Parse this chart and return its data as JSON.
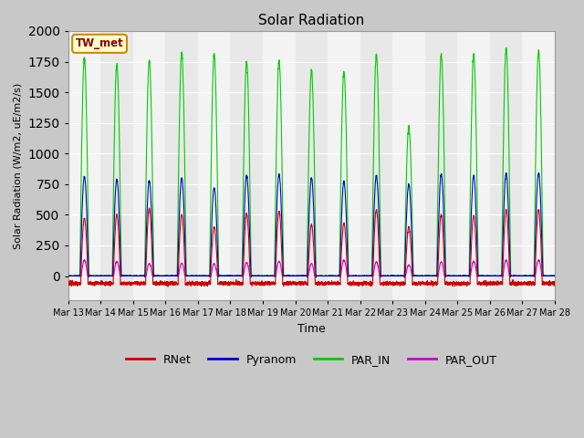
{
  "title": "Solar Radiation",
  "ylabel": "Solar Radiation (W/m2, uE/m2/s)",
  "xlabel": "Time",
  "ylim": [
    -200,
    2000
  ],
  "colors": {
    "RNet": "#cc0000",
    "Pyranom": "#0000cc",
    "PAR_IN": "#00cc00",
    "PAR_OUT": "#cc00cc"
  },
  "xtick_labels": [
    "Mar 13",
    "Mar 14",
    "Mar 15",
    "Mar 16",
    "Mar 17",
    "Mar 18",
    "Mar 19",
    "Mar 20",
    "Mar 21",
    "Mar 22",
    "Mar 23",
    "Mar 24",
    "Mar 25",
    "Mar 26",
    "Mar 27",
    "Mar 28"
  ],
  "legend_label": "TW_met",
  "num_days": 15,
  "peaks": {
    "PAR_IN": [
      1780,
      1730,
      1760,
      1820,
      1810,
      1750,
      1760,
      1680,
      1670,
      1800,
      1220,
      1800,
      1810,
      1860,
      1840
    ],
    "Pyranom": [
      810,
      790,
      775,
      800,
      720,
      820,
      830,
      800,
      770,
      820,
      750,
      830,
      820,
      840,
      840
    ],
    "RNet": [
      470,
      500,
      550,
      500,
      400,
      510,
      530,
      420,
      430,
      540,
      400,
      500,
      490,
      540,
      540
    ],
    "PAR_OUT": [
      130,
      120,
      100,
      105,
      100,
      110,
      120,
      100,
      130,
      115,
      90,
      115,
      120,
      130,
      130
    ]
  },
  "fig_facecolor": "#c8c8c8",
  "ax_facecolor": "#e8e8e8",
  "grid_color": "#ffffff"
}
